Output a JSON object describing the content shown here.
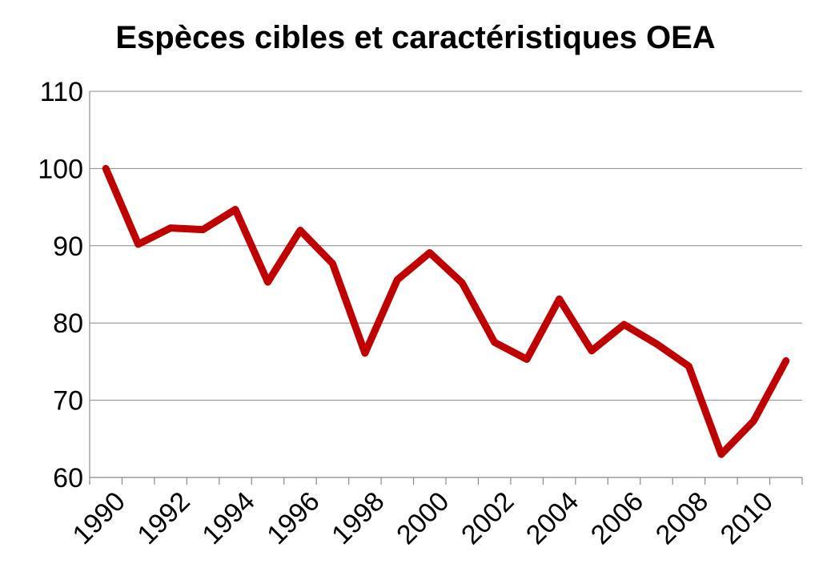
{
  "chart_data": {
    "type": "line",
    "title": "Espèces cibles et caractéristiques OEA",
    "xlabel": "",
    "ylabel": "",
    "x": [
      1990,
      1991,
      1992,
      1993,
      1994,
      1995,
      1996,
      1997,
      1998,
      1999,
      2000,
      2001,
      2002,
      2003,
      2004,
      2005,
      2006,
      2007,
      2008,
      2009,
      2010,
      2011
    ],
    "x_tick_labels": [
      "1990",
      "1992",
      "1994",
      "1996",
      "1998",
      "2000",
      "2002",
      "2004",
      "2006",
      "2008",
      "2010"
    ],
    "y_tick_labels": [
      "110",
      "100",
      "90",
      "80",
      "70",
      "60"
    ],
    "ylim": [
      60,
      110
    ],
    "grid": true,
    "legend": "none",
    "series": [
      {
        "color": "#c00000",
        "values": [
          100,
          90.2,
          92.3,
          92.1,
          94.7,
          85.3,
          92.0,
          87.7,
          76.1,
          85.6,
          89.1,
          85.2,
          77.5,
          75.3,
          83.1,
          76.4,
          79.8,
          77.3,
          74.4,
          63.0,
          67.3,
          75.1
        ]
      }
    ]
  }
}
